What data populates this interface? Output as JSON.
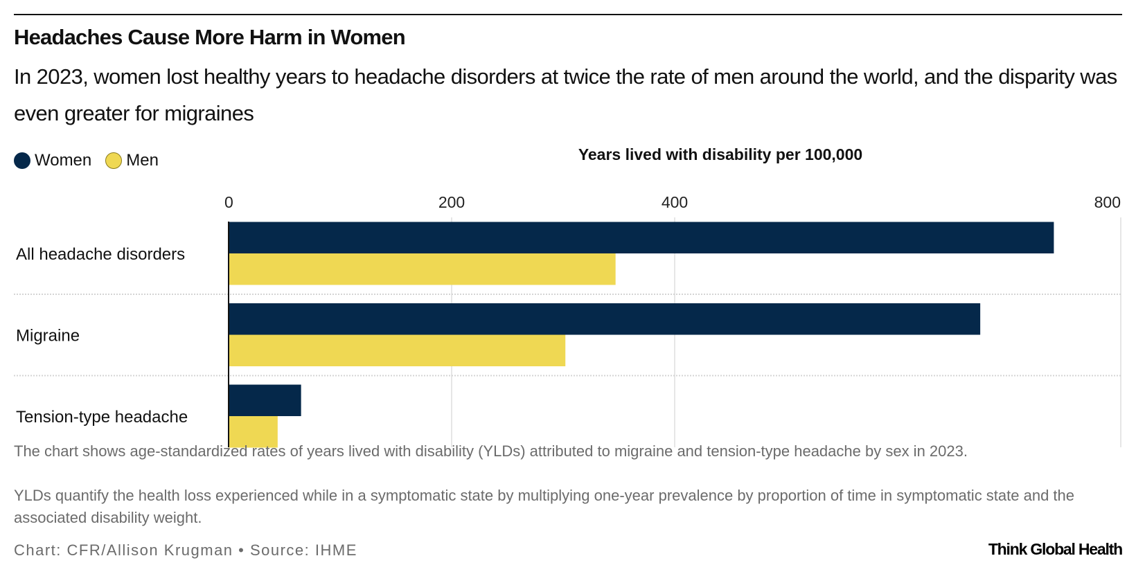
{
  "header": {
    "title": "Headaches Cause More Harm in Women",
    "subtitle": "In 2023, women lost healthy years to headache disorders at twice the rate of men around the world, and the disparity was even greater for migraines"
  },
  "chart_data": {
    "type": "bar",
    "orientation": "horizontal",
    "xlabel": "Years lived with disability per 100,000",
    "xlim": [
      0,
      800
    ],
    "xticks": [
      0,
      200,
      400,
      800
    ],
    "xtick_labels": [
      "0",
      "200",
      "400",
      "800"
    ],
    "grid": true,
    "legend_position": "top-left",
    "categories": [
      "All headache disorders",
      "Migraine",
      "Tension-type headache"
    ],
    "series": [
      {
        "name": "Women",
        "color": "#05284a",
        "values": [
          740,
          674,
          65
        ]
      },
      {
        "name": "Men",
        "color": "#efd853",
        "values": [
          347,
          302,
          44
        ]
      }
    ]
  },
  "notes": [
    "The chart shows age-standardized rates of years lived with disability (YLDs) attributed to migraine and tension-type headache by sex in 2023.",
    "YLDs quantify the health loss experienced while in a symptomatic state by multiplying one-year prevalence by proportion of time in symptomatic state and the associated disability weight."
  ],
  "source": "Chart: CFR/Allison Krugman • Source: IHME",
  "logo": "Think Global Health"
}
